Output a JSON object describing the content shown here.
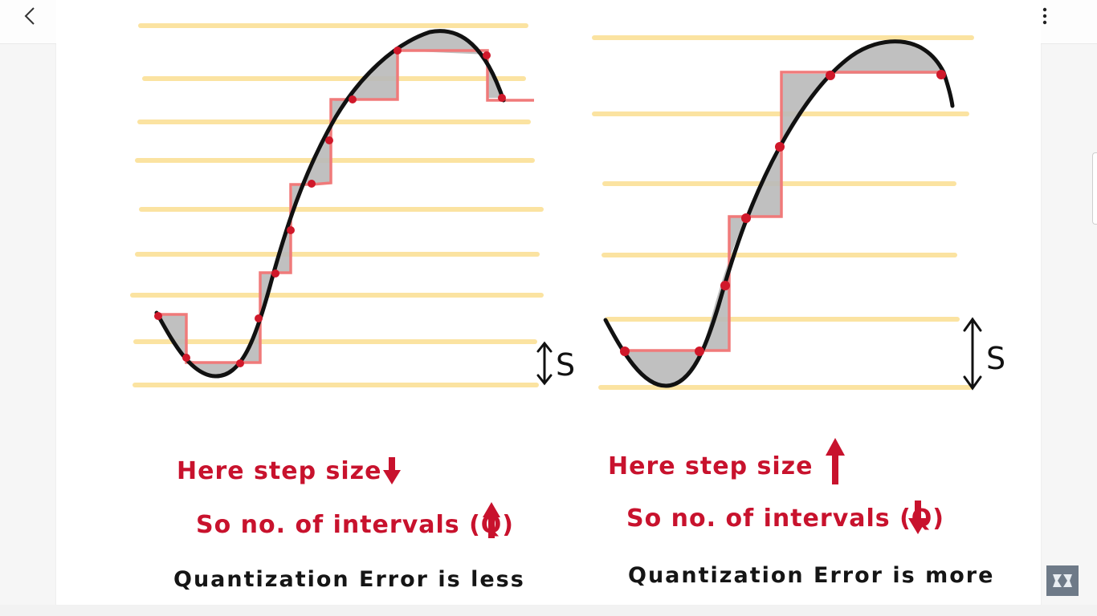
{
  "icons": {
    "back": "chevron-left-icon",
    "more": "more-vertical-icon",
    "logo": "channel-logo-icon",
    "arrow_down": "arrow-down-icon",
    "arrow_up": "arrow-up-icon",
    "double_arrow": "double-headed-arrow-icon"
  },
  "colors": {
    "level_lines": "#fbe3a1",
    "signal": "#111111",
    "staircase": "#f07a7a",
    "error_fill": "#b9b9b9",
    "sample_points": "#d0182a",
    "annotation_red": "#c8122d"
  },
  "left_panel": {
    "step_label": "S",
    "lines": [
      {
        "text": "Here step size",
        "arrow": "down"
      },
      {
        "text": "So no. of intervals (Q)",
        "arrow": "up"
      },
      {
        "text": "Quantization Error is less"
      }
    ]
  },
  "right_panel": {
    "step_label": "S",
    "lines": [
      {
        "text": "Here step size",
        "arrow": "up"
      },
      {
        "text": "So no. of intervals (Q)",
        "arrow": "down"
      },
      {
        "text": "Quantization Error is more"
      }
    ]
  }
}
